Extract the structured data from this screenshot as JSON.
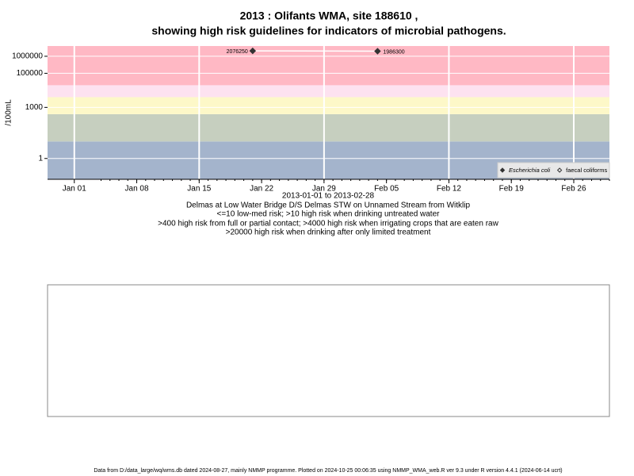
{
  "chart_data": {
    "type": "line",
    "title": [
      "2013 : Olifants WMA, site 188610 ,",
      "showing high risk guidelines for indicators of microbial pathogens."
    ],
    "y_label": "/100mL",
    "x_label": "2013-01-01 to 2013-02-28",
    "notes": [
      "Delmas at Low Water Bridge D/S Delmas STW on Unnamed Stream from Witklip",
      "<=10 low-med risk; >10 high risk when drinking untreated water",
      ">400 high risk from full or partial contact; >4000 high risk when irrigating crops that are eaten raw",
      ">20000 high risk when drinking after only limited treatment"
    ],
    "footer": "Data from D:/data_large/wq/wms.db dated 2024-08-27, mainly NMMP programme. Plotted on 2024-10-25 00:06:35 using NMMP_WMA_web.R ver 9.3 under R version 4.4.1 (2024-06-14 ucrt)",
    "log_y": true,
    "x": [
      "2013-01-21",
      "2013-02-04"
    ],
    "series": [
      {
        "name": "Escherichia coli",
        "color": "#333333",
        "marker": "filled-diamond",
        "values": [
          2076250,
          1986300
        ]
      },
      {
        "name": "faecal coliforms",
        "color": "#333333",
        "marker": "open-diamond",
        "values": [
          null,
          null
        ]
      }
    ],
    "band_limits": [
      10,
      400,
      4000,
      20000
    ],
    "band_colors": [
      "#a4b4cc",
      "#c6cfbf",
      "#fdf8c8",
      "#fde2f0",
      "#ffb8c4"
    ],
    "xlim": [
      "2012-12-29",
      "2013-03-02"
    ],
    "ylim": [
      0.06,
      4000000
    ],
    "yticks": [
      1,
      1000,
      100000,
      1000000
    ],
    "xticks": [
      {
        "value": "2013-01-01",
        "label": "Jan 01"
      },
      {
        "value": "2013-01-08",
        "label": "Jan 08"
      },
      {
        "value": "2013-01-15",
        "label": "Jan 15"
      },
      {
        "value": "2013-01-22",
        "label": "Jan 22"
      },
      {
        "value": "2013-01-29",
        "label": "Jan 29"
      },
      {
        "value": "2013-02-05",
        "label": "Feb 05"
      },
      {
        "value": "2013-02-12",
        "label": "Feb 12"
      },
      {
        "value": "2013-02-19",
        "label": "Feb 19"
      },
      {
        "value": "2013-02-26",
        "label": "Feb 26"
      }
    ],
    "legend": "bottom-right"
  }
}
